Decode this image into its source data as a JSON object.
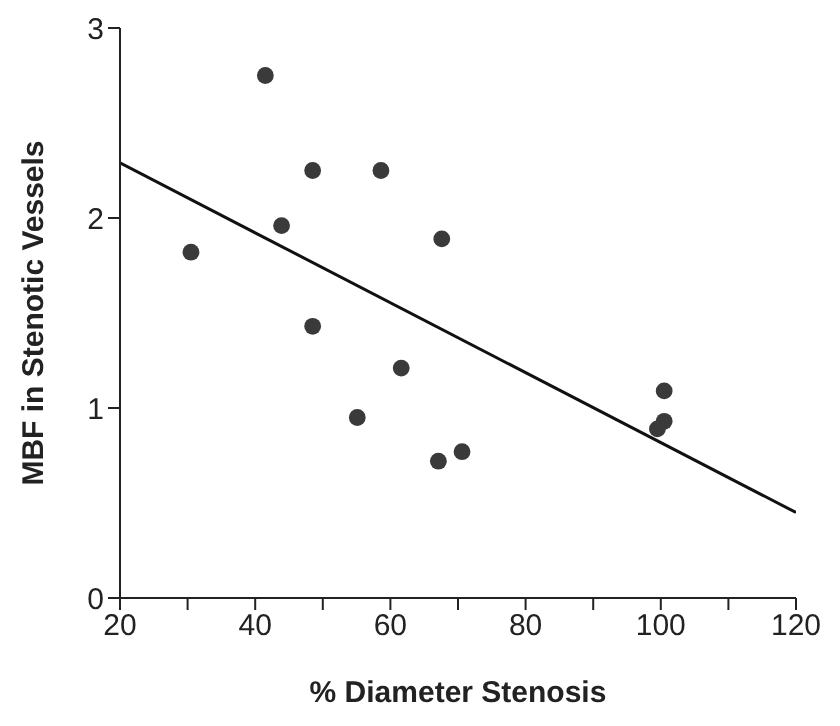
{
  "chart_data": {
    "type": "scatter",
    "xlabel": "% Diameter Stenosis",
    "ylabel": "MBF in Stenotic Vessels",
    "xlim": [
      20,
      120
    ],
    "xticks": [
      20,
      {
        "value": 30,
        "label": null
      },
      40,
      {
        "value": 50,
        "label": null
      },
      60,
      {
        "value": 70,
        "label": null
      },
      80,
      {
        "value": 90,
        "label": null
      },
      100,
      {
        "value": 110,
        "label": null
      },
      120
    ],
    "ylim": [
      0,
      3
    ],
    "yticks": [
      0,
      1,
      2,
      3
    ],
    "grid": false,
    "legend": false,
    "marker": "circle",
    "series": [
      {
        "color": "#3a3a3a",
        "x": [
          30.5,
          41.5,
          43.9,
          48.5,
          48.5,
          58.6,
          61.6,
          55.1,
          67.6,
          67.1,
          70.6,
          100.5,
          100.5,
          99.5
        ],
        "values": [
          1.82,
          2.75,
          1.96,
          2.25,
          1.43,
          2.25,
          1.21,
          0.95,
          1.89,
          0.72,
          0.77,
          1.09,
          0.93,
          0.89
        ]
      },
      {
        "type": "line",
        "color": "#111111",
        "x": [
          20,
          120
        ],
        "values": [
          2.29,
          0.45
        ],
        "marker": "none",
        "line_style": "solid"
      }
    ]
  }
}
